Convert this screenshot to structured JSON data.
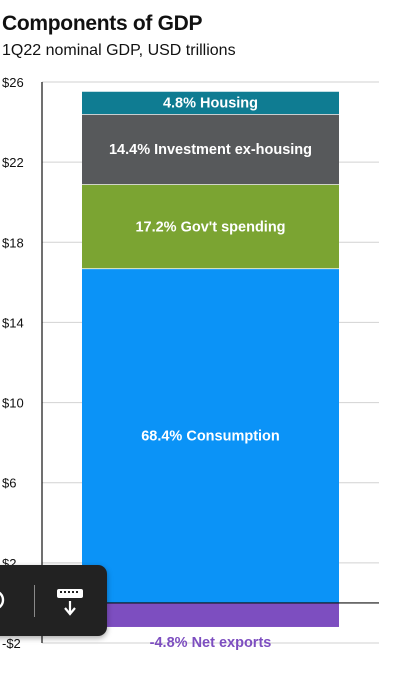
{
  "header": {
    "title": "Components of GDP",
    "subtitle": "1Q22 nominal GDP, USD trillions"
  },
  "chart_data": {
    "type": "bar",
    "stacked": true,
    "title": "Components of GDP",
    "subtitle": "1Q22 nominal GDP, USD trillions",
    "xlabel": "",
    "ylabel": "",
    "ylim": [
      -2,
      26
    ],
    "yticks": [
      -2,
      2,
      6,
      10,
      14,
      18,
      22,
      26
    ],
    "ytick_labels": [
      "-$2",
      "$2",
      "$6",
      "$10",
      "$14",
      "$18",
      "$22",
      "$26"
    ],
    "grid": true,
    "legend": "none",
    "segments": [
      {
        "label": "68.4% Consumption",
        "start": 0,
        "value": 16.7,
        "color": "#0b93f7"
      },
      {
        "label": "17.2% Gov't  spending",
        "start": 16.7,
        "value": 4.2,
        "color": "#7ba432"
      },
      {
        "label": "14.4% Investment ex-housing",
        "start": 20.9,
        "value": 3.5,
        "color": "#57595b"
      },
      {
        "label": "4.8% Housing",
        "start": 24.4,
        "value": 1.15,
        "color": "#0f7c92"
      },
      {
        "label": "-4.8% Net exports",
        "start": 0,
        "value": -1.2,
        "color": "#7d4ec0"
      }
    ]
  },
  "toolbar": {
    "icons": [
      "refresh-icon",
      "keyboard-download-icon"
    ]
  }
}
